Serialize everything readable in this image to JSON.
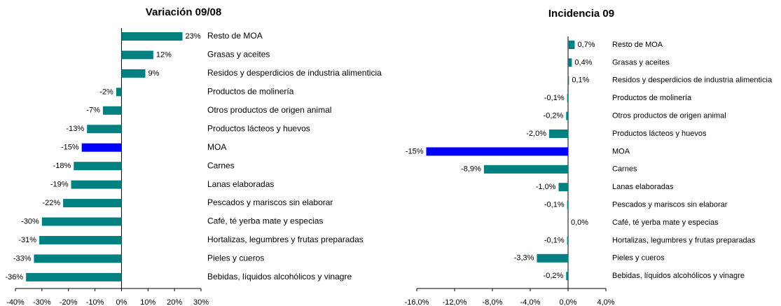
{
  "chart_data": [
    {
      "type": "bar",
      "orientation": "horizontal",
      "title": "Variación 09/08",
      "categories": [
        "Resto de MOA",
        "Grasas y aceites",
        "Residos y desperdicios de industria alimenticia",
        "Productos de molinería",
        "Otros productos de origen  animal",
        "Productos lácteos y huevos",
        "MOA",
        "Carnes",
        "Lanas elaboradas",
        "Pescados y mariscos sin elaborar",
        "Café, té yerba mate y especias",
        "Hortalizas, legumbres y frutas preparadas",
        "Pieles y cueros",
        "Bebidas, líquidos alcohólicos y vinagre"
      ],
      "values": [
        23,
        12,
        9,
        -2,
        -7,
        -13,
        -15,
        -18,
        -19,
        -22,
        -30,
        -31,
        -33,
        -36
      ],
      "value_labels": [
        "23%",
        "12%",
        "9%",
        "-2%",
        "-7%",
        "-13%",
        "-15%",
        "-18%",
        "-19%",
        "-22%",
        "-30%",
        "-31%",
        "-33%",
        "-36%"
      ],
      "colors": [
        "#008080",
        "#008080",
        "#008080",
        "#008080",
        "#008080",
        "#008080",
        "#0000ff",
        "#008080",
        "#008080",
        "#008080",
        "#008080",
        "#008080",
        "#008080",
        "#008080"
      ],
      "xlim": [
        -40,
        30
      ],
      "xticks": [
        {
          "value": -40,
          "label": "-40%"
        },
        {
          "value": -30,
          "label": "-30%"
        },
        {
          "value": -20,
          "label": "-20%"
        },
        {
          "value": -10,
          "label": "-10%"
        },
        {
          "value": 0,
          "label": "0%"
        },
        {
          "value": 10,
          "label": "10%"
        },
        {
          "value": 20,
          "label": "20%"
        },
        {
          "value": 30,
          "label": "30%"
        }
      ]
    },
    {
      "type": "bar",
      "orientation": "horizontal",
      "title": "Incidencia 09",
      "categories": [
        "Resto de MOA",
        "Grasas y aceites",
        "Residos y desperdicios de industria alimenticia",
        "Productos de molinería",
        "Otros productos de origen  animal",
        "Productos lácteos y huevos",
        "MOA",
        "Carnes",
        "Lanas elaboradas",
        "Pescados y mariscos sin elaborar",
        "Café, té yerba mate y especias",
        "Hortalizas, legumbres y frutas preparadas",
        "Pieles y cueros",
        "Bebidas, líquidos alcohólicos y vinagre"
      ],
      "values": [
        0.7,
        0.4,
        0.1,
        -0.1,
        -0.2,
        -2.0,
        -15,
        -8.9,
        -1.0,
        -0.1,
        0.0,
        -0.1,
        -3.3,
        -0.2
      ],
      "value_labels": [
        "0,7%",
        "0,4%",
        "0,1%",
        "-0,1%",
        "-0,2%",
        "-2,0%",
        "-15%",
        "-8,9%",
        "-1,0%",
        "-0,1%",
        "0,0%",
        "-0,1%",
        "-3,3%",
        "-0,2%"
      ],
      "colors": [
        "#008080",
        "#008080",
        "#008080",
        "#008080",
        "#008080",
        "#008080",
        "#0000ff",
        "#008080",
        "#008080",
        "#008080",
        "#008080",
        "#008080",
        "#008080",
        "#008080"
      ],
      "xlim": [
        -16,
        4
      ],
      "xticks": [
        {
          "value": -16,
          "label": "-16,0%"
        },
        {
          "value": -12,
          "label": "-12,0%"
        },
        {
          "value": -8,
          "label": "-8,0%"
        },
        {
          "value": -4,
          "label": "-4,0%"
        },
        {
          "value": 0,
          "label": "0,0%"
        },
        {
          "value": 4,
          "label": "4,0%"
        }
      ]
    }
  ]
}
